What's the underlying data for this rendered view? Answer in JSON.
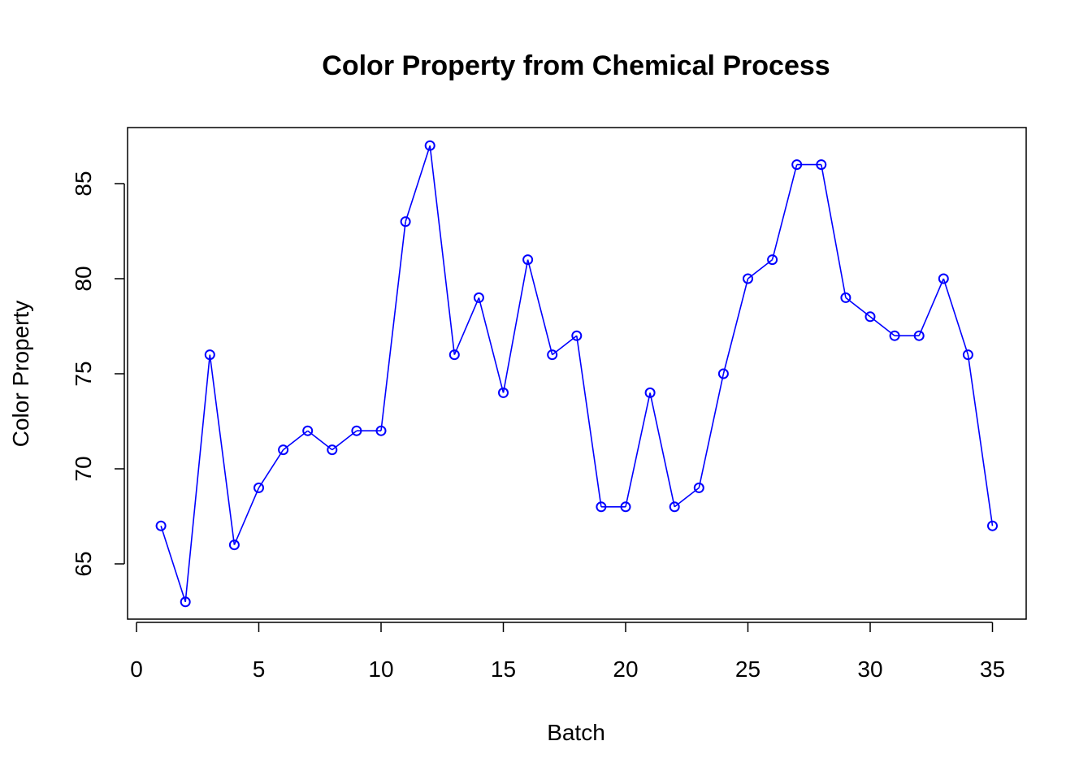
{
  "chart_data": {
    "type": "line",
    "title": "Color Property from Chemical Process",
    "xlabel": "Batch",
    "ylabel": "Color Property",
    "xlim": [
      0,
      35
    ],
    "ylim": [
      62,
      87
    ],
    "xticks": [
      0,
      5,
      10,
      15,
      20,
      25,
      30,
      35
    ],
    "yticks": [
      65,
      70,
      75,
      80,
      85
    ],
    "xtick_labels": [
      "0",
      "5",
      "10",
      "15",
      "20",
      "25",
      "30",
      "35"
    ],
    "ytick_labels": [
      "65",
      "70",
      "75",
      "80",
      "85"
    ],
    "grid": false,
    "series": [
      {
        "color": "#0000ff",
        "marker": "open-circle",
        "x": [
          1,
          2,
          3,
          4,
          5,
          6,
          7,
          8,
          9,
          10,
          11,
          12,
          13,
          14,
          15,
          16,
          17,
          18,
          19,
          20,
          21,
          22,
          23,
          24,
          25,
          26,
          27,
          28,
          29,
          30,
          31,
          32,
          33,
          34,
          35
        ],
        "values": [
          67,
          63,
          76,
          66,
          69,
          71,
          72,
          71,
          72,
          72,
          83,
          87,
          76,
          79,
          74,
          81,
          76,
          77,
          68,
          68,
          74,
          68,
          69,
          75,
          80,
          81,
          86,
          86,
          79,
          78,
          77,
          77,
          80,
          76,
          67
        ]
      }
    ]
  }
}
